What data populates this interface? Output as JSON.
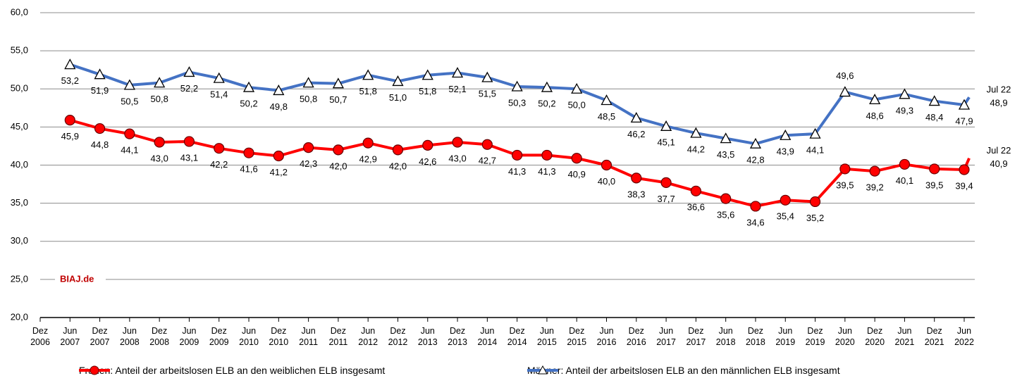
{
  "chart_data": {
    "type": "line",
    "categories": [
      "Dez 2006",
      "Jun 2007",
      "Dez 2007",
      "Jun 2008",
      "Dez 2008",
      "Jun 2009",
      "Dez 2009",
      "Jun 2010",
      "Dez 2010",
      "Jun 2011",
      "Dez 2011",
      "Jun 2012",
      "Dez 2012",
      "Jun 2013",
      "Dez 2013",
      "Jun 2014",
      "Dez 2014",
      "Jun 2015",
      "Dez 2015",
      "Jun 2016",
      "Dez 2016",
      "Jun 2017",
      "Dez 2017",
      "Jun 2018",
      "Dez 2018",
      "Jun 2019",
      "Dez 2019",
      "Jun 2020",
      "Dez 2020",
      "Jun 2021",
      "Dez 2021",
      "Jun 2022"
    ],
    "series": [
      {
        "name": "Frauen: Anteil der arbeitslosen ELB an den weiblichen ELB insgesamt",
        "color": "#ff0000",
        "marker": "circle",
        "values": [
          null,
          45.9,
          44.8,
          44.1,
          43.0,
          43.1,
          42.2,
          41.6,
          41.2,
          42.3,
          42.0,
          42.9,
          42.0,
          42.6,
          43.0,
          42.7,
          41.3,
          41.3,
          40.9,
          40.0,
          38.3,
          37.7,
          36.6,
          35.6,
          34.6,
          35.4,
          35.2,
          39.5,
          39.2,
          40.1,
          39.5,
          39.4
        ],
        "value_labels": [
          null,
          "45,9",
          "44,8",
          "44,1",
          "43,0",
          "43,1",
          "42,2",
          "41,6",
          "41,2",
          "42,3",
          "42,0",
          "42,9",
          "42,0",
          "42,6",
          "43,0",
          "42,7",
          "41,3",
          "41,3",
          "40,9",
          "40,0",
          "38,3",
          "37,7",
          "36,6",
          "35,6",
          "34,6",
          "35,4",
          "35,2",
          "39,5",
          "39,2",
          "40,1",
          "39,5",
          "39,4"
        ],
        "last": {
          "label": "Jul 22",
          "value": 40.9,
          "value_label": "40,9"
        }
      },
      {
        "name": "Männer: Anteil der arbeitslosen ELB an den männlichen ELB insgesamt",
        "color": "#4472c4",
        "marker": "triangle",
        "values": [
          null,
          53.2,
          51.9,
          50.5,
          50.8,
          52.2,
          51.4,
          50.2,
          49.8,
          50.8,
          50.7,
          51.8,
          51.0,
          51.8,
          52.1,
          51.5,
          50.3,
          50.2,
          50.0,
          48.5,
          46.2,
          45.1,
          44.2,
          43.5,
          42.8,
          43.9,
          44.1,
          49.6,
          48.6,
          49.3,
          48.4,
          47.9
        ],
        "value_labels": [
          null,
          "53,2",
          "51,9",
          "50,5",
          "50,8",
          "52,2",
          "51,4",
          "50,2",
          "49,8",
          "50,8",
          "50,7",
          "51,8",
          "51,0",
          "51,8",
          "52,1",
          "51,5",
          "50,3",
          "50,2",
          "50,0",
          "48,5",
          "46,2",
          "45,1",
          "44,2",
          "43,5",
          "42,8",
          "43,9",
          "44,1",
          "49,6",
          "48,6",
          "49,3",
          "48,4",
          "47,9"
        ],
        "last": {
          "label": "Jul 22",
          "value": 48.9,
          "value_label": "48,9"
        }
      }
    ],
    "ylim": [
      20,
      60
    ],
    "yticks": [
      {
        "value": 20,
        "label": "20,0"
      },
      {
        "value": 25,
        "label": "25,0"
      },
      {
        "value": 30,
        "label": "30,0"
      },
      {
        "value": 35,
        "label": "35,0"
      },
      {
        "value": 40,
        "label": "40,0"
      },
      {
        "value": 45,
        "label": "45,0"
      },
      {
        "value": 50,
        "label": "50,0"
      },
      {
        "value": 55,
        "label": "55,0"
      },
      {
        "value": 60,
        "label": "60,0"
      }
    ],
    "grid": true,
    "annotation": {
      "text": "BIAJ.de",
      "y": 25,
      "color": "#c00000"
    },
    "legend": "bottom"
  }
}
